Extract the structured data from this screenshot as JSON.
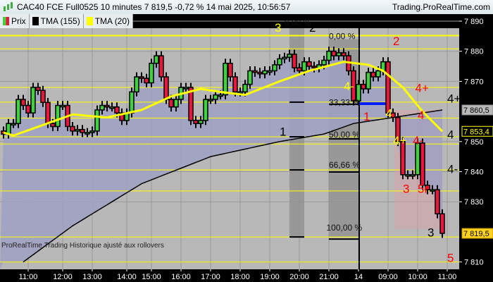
{
  "header": {
    "title": "CAC40 FCE Full0525 10 minutes 7 819,5 -0,72 % 14 mai 2025, 10:56:57",
    "site": "Trading.ProRealTime.com"
  },
  "legend": [
    {
      "label": "Prix",
      "color": "#e0203c"
    },
    {
      "label": "TMA (155)",
      "color": "#000000"
    },
    {
      "label": "TMA (20)",
      "color": "#ffff00"
    }
  ],
  "footer": "ProRealTime Trading  Historique ajusté aux rollovers",
  "colors": {
    "up": "#40d040",
    "down": "#e8183c",
    "tma20": "#ffff00",
    "tma155": "#000000",
    "fill": "#9fa0c2",
    "bg": "#b8b8b8"
  },
  "chart_data": {
    "type": "candlestick",
    "ylim": [
      7806,
      7892
    ],
    "y_ticks": [
      {
        "v": 7890,
        "l": "7 890"
      },
      {
        "v": 7880,
        "l": "7 880"
      },
      {
        "v": 7870,
        "l": "7 870"
      },
      {
        "v": 7850,
        "l": "7 850"
      },
      {
        "v": 7840,
        "l": "7 840"
      },
      {
        "v": 7830,
        "l": "7 830"
      },
      {
        "v": 7810,
        "l": "7 810"
      }
    ],
    "x_ticks": [
      {
        "i": 5,
        "l": "11:00"
      },
      {
        "i": 12,
        "l": "12:00"
      },
      {
        "i": 18,
        "l": "13:00"
      },
      {
        "i": 25,
        "l": "14:00"
      },
      {
        "i": 30,
        "l": "15:00"
      },
      {
        "i": 36,
        "l": "16:00"
      },
      {
        "i": 42,
        "l": "17:00"
      },
      {
        "i": 48,
        "l": "18:00"
      },
      {
        "i": 54,
        "l": "19:00"
      },
      {
        "i": 60,
        "l": "20:00"
      },
      {
        "i": 66,
        "l": "21:00"
      },
      {
        "i": 72,
        "l": "14"
      },
      {
        "i": 78,
        "l": "09:00"
      },
      {
        "i": 84,
        "l": "10:00"
      },
      {
        "i": 90,
        "l": "11:00"
      }
    ],
    "closes": [
      7852.5,
      7856,
      7856,
      7864,
      7862,
      7859.5,
      7868,
      7867,
      7863,
      7856,
      7855,
      7862,
      7862,
      7855,
      7853.5,
      7854,
      7853,
      7853,
      7853.5,
      7860.5,
      7862,
      7861.5,
      7861.5,
      7859.5,
      7857,
      7859.5,
      7866.5,
      7871.5,
      7871,
      7869.5,
      7876,
      7878.5,
      7871.5,
      7864,
      7861.5,
      7864,
      7868,
      7868,
      7857,
      7856,
      7857,
      7864,
      7864,
      7865.5,
      7865.5,
      7876,
      7871.5,
      7866.5,
      7866.5,
      7869,
      7873.5,
      7873,
      7872.5,
      7873.5,
      7873.5,
      7875.5,
      7877.5,
      7878,
      7879,
      7874.5,
      7873.5,
      7876.5,
      7875,
      7874.5,
      7875.5,
      7877,
      7880,
      7878.5,
      7879.5,
      7878.5,
      7873.5,
      7863.5,
      7869,
      7867.5,
      7873,
      7871.5,
      7873.5,
      7876.5,
      7859.5,
      7858,
      7850,
      7839,
      7839,
      7839,
      7849.5,
      7835.5,
      7834,
      7834,
      7826,
      7819.5
    ],
    "tma20": [
      [
        0,
        7853
      ],
      [
        2,
        7852
      ],
      [
        8,
        7855.5
      ],
      [
        14,
        7859
      ],
      [
        21,
        7858
      ],
      [
        28,
        7860.5
      ],
      [
        34,
        7865
      ],
      [
        40,
        7867.5
      ],
      [
        44,
        7866.5
      ],
      [
        49,
        7865.5
      ],
      [
        56,
        7870
      ],
      [
        62,
        7873.5
      ],
      [
        69,
        7876.5
      ],
      [
        74,
        7875.5
      ],
      [
        77,
        7873.5
      ],
      [
        81,
        7868
      ],
      [
        85,
        7860
      ],
      [
        89,
        7853.4
      ]
    ],
    "tma155": [
      [
        4,
        7810
      ],
      [
        14,
        7822
      ],
      [
        28,
        7836
      ],
      [
        42,
        7845
      ],
      [
        56,
        7850
      ],
      [
        65,
        7852.5
      ],
      [
        71,
        7856
      ],
      [
        79,
        7858
      ],
      [
        89,
        7860.5
      ]
    ],
    "levels": [
      7885.2,
      7880.8,
      7868,
      7863.1,
      7857.8,
      7851.6,
      7849.2,
      7840.6,
      7833.6,
      7818.3,
      7810
    ],
    "fib_labels": [
      {
        "t": "0,00 %",
        "v": 7888.5,
        "i": 57
      },
      {
        "t": "0,00 %",
        "v": 7884,
        "i": 66
      },
      {
        "t": "33,33 %",
        "v": 7862,
        "i": 66
      },
      {
        "t": "50,00 %",
        "v": 7851.3,
        "i": 66
      },
      {
        "t": "66,66 %",
        "v": 7841.3,
        "i": 66
      },
      {
        "t": "100,00 %",
        "v": 7820.5,
        "i": 65.5
      }
    ],
    "annotations": [
      {
        "t": "3",
        "c": "#ffff00",
        "i": 55,
        "v": 7886.5
      },
      {
        "t": "2",
        "c": "#000",
        "i": 62,
        "v": 7886.5
      },
      {
        "t": "2",
        "c": "#ff0000",
        "i": 79,
        "v": 7882
      },
      {
        "t": "4-",
        "c": "#ffff00",
        "i": 69,
        "v": 7867
      },
      {
        "t": "4+",
        "c": "#ff0000",
        "i": 83.5,
        "v": 7866.5
      },
      {
        "t": "4+",
        "c": "#000",
        "i": 90,
        "v": 7863
      },
      {
        "t": "1",
        "c": "#ff0000",
        "i": 73,
        "v": 7857
      },
      {
        "t": "4",
        "c": "#ffff00",
        "i": 77.5,
        "v": 7858
      },
      {
        "t": "4",
        "c": "#ff0000",
        "i": 84,
        "v": 7857.5
      },
      {
        "t": "1",
        "c": "#000",
        "i": 56,
        "v": 7852
      },
      {
        "t": "4",
        "c": "#000",
        "i": 90,
        "v": 7851
      },
      {
        "t": "4+",
        "c": "#ffff00",
        "i": 79,
        "v": 7849
      },
      {
        "t": "4-",
        "c": "#ff0000",
        "i": 83,
        "v": 7849
      },
      {
        "t": "4-",
        "c": "#000",
        "i": 90,
        "v": 7839.5
      },
      {
        "t": "3",
        "c": "#ff0000",
        "i": 81,
        "v": 7833
      },
      {
        "t": "5r",
        "c": "#ff0000",
        "i": 84,
        "v": 7833
      },
      {
        "t": "3",
        "c": "#000",
        "i": 86,
        "v": 7818.5
      },
      {
        "t": "5",
        "c": "#ff0000",
        "i": 90,
        "v": 7810
      }
    ],
    "price_boxes": [
      {
        "t": "7 860,5",
        "v": 7860.5,
        "bg": "#b8b8b8",
        "fg": "#000",
        "bd": "#888"
      },
      {
        "t": "7 853,4",
        "v": 7853.4,
        "bg": "#000",
        "fg": "#ffff00",
        "bd": "#ffff00"
      },
      {
        "t": "7 819,5",
        "v": 7819.5,
        "bg": "#ffd21e",
        "fg": "#000",
        "bd": "#c09000"
      }
    ]
  }
}
